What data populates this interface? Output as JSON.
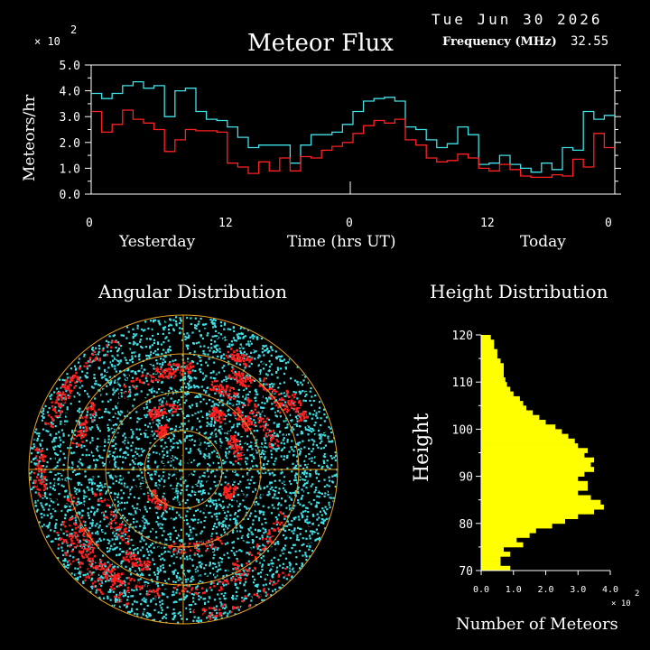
{
  "header": {
    "date": "Tue Jun 30 2026",
    "title": "Meteor Flux",
    "freq_label": "Frequency (MHz)",
    "freq_value": "32.55",
    "flux_scale": "× 10",
    "flux_scale_exp": "2"
  },
  "colors": {
    "background": "#000000",
    "axis": "#ffffff",
    "series_cyan": "#40e0e8",
    "series_red": "#ff2020",
    "histogram": "#ffff00",
    "grid_orange": "#e8a020"
  },
  "chart_data": [
    {
      "type": "line",
      "title": "Meteor Flux",
      "ylabel": "Meteors/hr",
      "xlabel": "Time (hrs UT)",
      "ylim": [
        0,
        5
      ],
      "yticks": [
        "0.0",
        "1.0",
        "2.0",
        "3.0",
        "4.0",
        "5.0"
      ],
      "xticks": [
        "0",
        "12",
        "0",
        "12",
        "0"
      ],
      "xlim": [
        0,
        48
      ],
      "x_group_labels": [
        "Yesterday",
        "Today"
      ],
      "series": [
        {
          "color": "cyan",
          "values": [
            3.9,
            3.7,
            3.9,
            4.2,
            4.35,
            4.1,
            4.2,
            3.0,
            4.0,
            4.1,
            3.2,
            2.9,
            2.85,
            2.6,
            2.2,
            1.8,
            1.9,
            1.9,
            1.9,
            1.2,
            1.9,
            2.3,
            2.3,
            2.4,
            2.7,
            3.2,
            3.6,
            3.7,
            3.75,
            3.6,
            2.6,
            2.5,
            2.1,
            1.8,
            1.95,
            2.6,
            2.3,
            1.15,
            1.2,
            1.5,
            1.15,
            1.0,
            0.85,
            1.2,
            0.95,
            1.8,
            1.7,
            3.2,
            2.9,
            3.05
          ]
        },
        {
          "color": "red",
          "values": [
            3.2,
            2.4,
            2.7,
            3.25,
            2.9,
            2.75,
            2.5,
            1.65,
            2.1,
            2.5,
            2.45,
            2.45,
            2.4,
            1.2,
            1.05,
            0.8,
            1.25,
            0.9,
            1.4,
            0.9,
            1.45,
            1.4,
            1.7,
            1.85,
            2.0,
            2.35,
            2.65,
            2.85,
            2.75,
            2.9,
            2.1,
            1.9,
            1.4,
            1.25,
            1.3,
            1.55,
            1.4,
            1.0,
            0.9,
            1.15,
            0.95,
            0.7,
            0.65,
            0.65,
            0.75,
            0.7,
            1.35,
            1.05,
            2.35,
            1.8
          ]
        }
      ]
    },
    {
      "type": "scatter",
      "title": "Angular Distribution"
    },
    {
      "type": "bar",
      "orientation": "horizontal",
      "title": "Height Distribution",
      "ylabel": "Height",
      "xlabel": "Number of Meteors",
      "x_scale": "× 10",
      "x_scale_exp": "2",
      "xlim": [
        0,
        4
      ],
      "xticks": [
        "0.0",
        "1.0",
        "2.0",
        "3.0",
        "4.0"
      ],
      "ylim": [
        70,
        120
      ],
      "yticks": [
        "70",
        "80",
        "90",
        "100",
        "110",
        "120"
      ],
      "heights": [
        70,
        71,
        72,
        73,
        74,
        75,
        76,
        77,
        78,
        79,
        80,
        81,
        82,
        83,
        84,
        85,
        86,
        87,
        88,
        89,
        90,
        91,
        92,
        93,
        94,
        95,
        96,
        97,
        98,
        99,
        100,
        101,
        102,
        103,
        104,
        105,
        106,
        107,
        108,
        109,
        110,
        111,
        112,
        113,
        114,
        115,
        116,
        117,
        118,
        119
      ],
      "values": [
        0.9,
        0.6,
        0.6,
        0.9,
        0.7,
        1.3,
        1.1,
        1.5,
        1.7,
        2.2,
        2.6,
        3.0,
        3.5,
        3.8,
        3.7,
        3.4,
        3.0,
        3.3,
        3.3,
        3.0,
        3.2,
        3.5,
        3.4,
        3.5,
        3.2,
        3.3,
        3.0,
        2.9,
        2.7,
        2.5,
        2.3,
        2.0,
        1.8,
        1.6,
        1.4,
        1.3,
        1.2,
        1.0,
        0.9,
        0.8,
        0.75,
        0.7,
        0.7,
        0.7,
        0.6,
        0.5,
        0.5,
        0.4,
        0.4,
        0.3
      ]
    }
  ]
}
